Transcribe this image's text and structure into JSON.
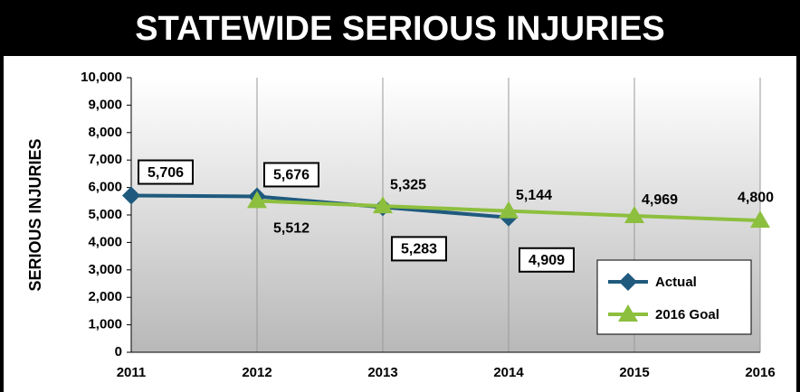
{
  "chart_data": {
    "type": "line",
    "title": "STATEWIDE SERIOUS INJURIES",
    "y_label": "SERIOUS INJURIES",
    "categories": [
      "2011",
      "2012",
      "2013",
      "2014",
      "2015",
      "2016"
    ],
    "series": [
      {
        "name": "Actual",
        "color": "#1f5a7e",
        "marker": "diamond",
        "values": [
          5706,
          5676,
          5283,
          4909,
          null,
          null
        ],
        "value_labels": [
          "5,706",
          "5,676",
          "5,283",
          "4,909",
          null,
          null
        ]
      },
      {
        "name": "2016 Goal",
        "color": "#8dbf3e",
        "marker": "triangle",
        "values": [
          null,
          5512,
          5325,
          5144,
          4969,
          4800
        ],
        "value_labels": [
          null,
          "5,512",
          "5,325",
          "5,144",
          "4,969",
          "4,800"
        ]
      }
    ],
    "ylim": [
      0,
      10000
    ],
    "yticks": [
      0,
      {
        "value": 1000,
        "label": "1,000"
      },
      {
        "value": 2000,
        "label": "2,000"
      },
      {
        "value": 3000,
        "label": "3,000"
      },
      {
        "value": 4000,
        "label": "4,000"
      },
      {
        "value": 5000,
        "label": "5,000"
      },
      {
        "value": 6000,
        "label": "6,000"
      },
      {
        "value": 7000,
        "label": "7,000"
      },
      {
        "value": 8000,
        "label": "8,000"
      },
      {
        "value": 9000,
        "label": "9,000"
      },
      {
        "value": 10000,
        "label": "10,000"
      }
    ],
    "grid": true,
    "legend": "lower right"
  }
}
